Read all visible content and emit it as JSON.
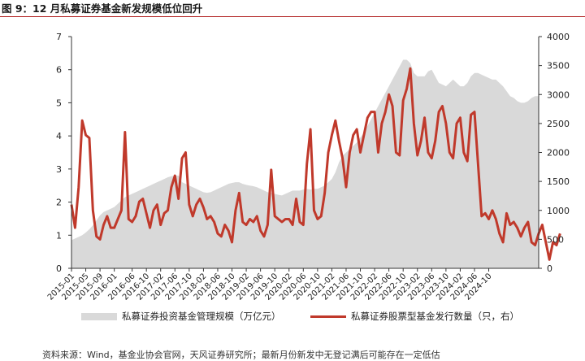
{
  "figure": {
    "title": "图 9：12 月私募证券基金新发规模低位回升",
    "source": "资料来源：Wind，基金业协会官网，天风证券研究所；最新月份新发中无登记满后可能存在一定低估"
  },
  "chart_data": {
    "type": "line",
    "title": "",
    "x_axis": {
      "tick_labels": [
        "2015-01",
        "2015-05",
        "2015-09",
        "2016-01",
        "2016-06",
        "2016-10",
        "2017-02",
        "2017-06",
        "2017-10",
        "2018-02",
        "2018-06",
        "2018-10",
        "2019-02",
        "2019-06",
        "2019-10",
        "2020-02",
        "2020-06",
        "2020-10",
        "2021-02",
        "2021-06",
        "2021-10",
        "2022-02",
        "2022-06",
        "2022-10",
        "2023-02",
        "2023-06",
        "2023-10",
        "2024-02",
        "2024-06",
        "2024-10"
      ],
      "start": "2015-01",
      "end": "2024-12"
    },
    "y_left": {
      "min": 0,
      "max": 7,
      "ticks": [
        "0",
        "1",
        "2",
        "3",
        "4",
        "5",
        "6",
        "7"
      ]
    },
    "y_right": {
      "min": 0,
      "max": 4000,
      "ticks": [
        "0",
        "500",
        "1000",
        "1500",
        "2000",
        "2500",
        "3000",
        "3500",
        "4000"
      ]
    },
    "grid": false,
    "legend_position": "bottom",
    "series": [
      {
        "name": "私募证券投资基金管理规模（万亿元）",
        "type": "area",
        "axis": "left",
        "color": "#d9d9d9",
        "values": [
          0.85,
          0.9,
          0.95,
          1.0,
          1.08,
          1.18,
          1.3,
          1.45,
          1.6,
          1.7,
          1.75,
          1.8,
          1.85,
          1.95,
          2.05,
          2.15,
          2.2,
          2.25,
          2.3,
          2.35,
          2.4,
          2.45,
          2.5,
          2.55,
          2.6,
          2.65,
          2.7,
          2.75,
          2.78,
          2.8,
          2.8,
          2.6,
          2.55,
          2.5,
          2.45,
          2.4,
          2.35,
          2.3,
          2.28,
          2.3,
          2.35,
          2.4,
          2.45,
          2.5,
          2.55,
          2.58,
          2.6,
          2.6,
          2.55,
          2.52,
          2.5,
          2.48,
          2.45,
          2.4,
          2.35,
          2.3,
          2.28,
          2.25,
          2.22,
          2.2,
          2.25,
          2.3,
          2.35,
          2.35,
          2.35,
          2.38,
          2.4,
          2.38,
          2.4,
          2.4,
          2.45,
          2.5,
          2.6,
          2.7,
          2.9,
          3.2,
          3.4,
          3.5,
          3.6,
          3.7,
          3.8,
          3.95,
          4.1,
          4.3,
          4.5,
          4.7,
          4.9,
          5.1,
          5.3,
          5.5,
          5.7,
          5.9,
          6.1,
          6.3,
          6.3,
          6.2,
          5.9,
          5.8,
          5.8,
          5.8,
          5.95,
          6.0,
          5.8,
          5.6,
          5.55,
          5.5,
          5.6,
          5.7,
          5.6,
          5.5,
          5.5,
          5.6,
          5.8,
          5.9,
          5.9,
          5.85,
          5.8,
          5.75,
          5.7,
          5.7,
          5.6,
          5.5,
          5.35,
          5.2,
          5.15,
          5.05,
          5.0,
          5.0,
          5.05,
          5.15,
          5.2,
          5.2
        ]
      },
      {
        "name": "私募证券股票型基金发行数量（只，右）",
        "type": "line",
        "axis": "right",
        "color": "#c0392b",
        "values": [
          1100,
          700,
          1400,
          2550,
          2300,
          2250,
          1000,
          550,
          500,
          750,
          900,
          700,
          700,
          850,
          1000,
          2350,
          850,
          800,
          900,
          1150,
          1200,
          950,
          700,
          1000,
          1100,
          750,
          950,
          1000,
          1400,
          1600,
          1200,
          1900,
          2000,
          1100,
          900,
          1100,
          1200,
          1050,
          850,
          900,
          800,
          600,
          550,
          750,
          650,
          450,
          1000,
          1300,
          800,
          750,
          850,
          800,
          900,
          650,
          550,
          750,
          1700,
          900,
          850,
          800,
          850,
          850,
          750,
          1200,
          800,
          750,
          1800,
          2400,
          1000,
          850,
          900,
          1300,
          2000,
          2300,
          2550,
          2200,
          1900,
          1400,
          2000,
          2300,
          2400,
          2000,
          2300,
          2600,
          2700,
          2700,
          2000,
          2500,
          2700,
          3000,
          2800,
          2000,
          1950,
          2900,
          3100,
          3450,
          2500,
          1950,
          2200,
          2600,
          2000,
          1900,
          2200,
          2700,
          2800,
          2500,
          2000,
          1900,
          2500,
          2600,
          2000,
          1850,
          2650,
          2700,
          1800,
          900,
          950,
          850,
          1000,
          850,
          600,
          450,
          950,
          750,
          800,
          700,
          550,
          700,
          800,
          450,
          400,
          600,
          750,
          450,
          150,
          450,
          400,
          600
        ]
      }
    ]
  }
}
